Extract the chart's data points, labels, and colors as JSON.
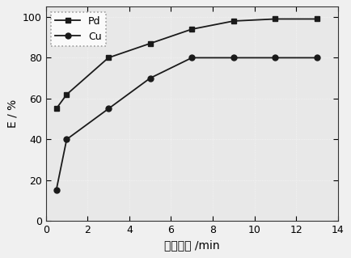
{
  "Pd_x": [
    0.5,
    1,
    3,
    5,
    7,
    9,
    11,
    13
  ],
  "Pd_y": [
    55,
    62,
    80,
    87,
    94,
    98,
    99,
    99
  ],
  "Cu_x": [
    0.5,
    1,
    3,
    5,
    7,
    9,
    11,
    13
  ],
  "Cu_y": [
    15,
    40,
    55,
    70,
    80,
    80,
    80,
    80
  ],
  "xlabel": "搞拌时间 /min",
  "ylabel": "E / %",
  "xlim": [
    0,
    14
  ],
  "ylim": [
    0,
    105
  ],
  "xticks": [
    0,
    2,
    4,
    6,
    8,
    10,
    12,
    14
  ],
  "yticks": [
    0,
    20,
    40,
    60,
    80,
    100
  ],
  "legend_Pd": "Pd",
  "legend_Cu": "Cu",
  "line_color": "#1a1a1a",
  "fig_facecolor": "#f0f0f0",
  "plot_facecolor": "#e8e8e8"
}
